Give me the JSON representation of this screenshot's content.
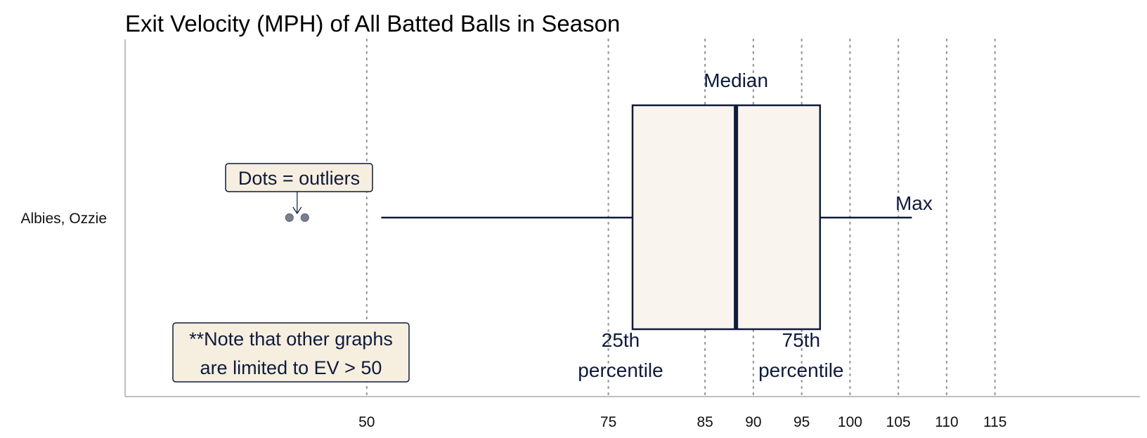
{
  "colors": {
    "ink": "#0f1a3c",
    "box_fill": "#f9f5ee",
    "note_fill": "#f6efdf",
    "grid": "#9a9a9a",
    "axis": "#aaaaaa",
    "outlier": "#7a7f91"
  },
  "chart_data": {
    "type": "box",
    "title": "Exit Velocity (MPH) of All Batted Balls in Season",
    "xlabel": "",
    "ylabel": "",
    "orientation": "horizontal",
    "grid": "vertical dotted lines at ticks",
    "xlim": [
      25,
      130
    ],
    "x_ticks": [
      50,
      75,
      85,
      90,
      95,
      100,
      105,
      110,
      115
    ],
    "categories": [
      "Albies, Ozzie"
    ],
    "box": {
      "whisker_low": 51.5,
      "q1": 77.5,
      "median": 88.2,
      "q3": 96.9,
      "whisker_high": 106.4,
      "outliers": [
        42.0,
        43.6
      ]
    },
    "annotations": {
      "median": "Median",
      "max": "Max",
      "q1_line1": "25th",
      "q1_line2": "percentile",
      "q3_line1": "75th",
      "q3_line2": "percentile",
      "outliers": "Dots = outliers",
      "note_line1": "**Note that other graphs",
      "note_line2": "are limited to EV > 50"
    }
  }
}
